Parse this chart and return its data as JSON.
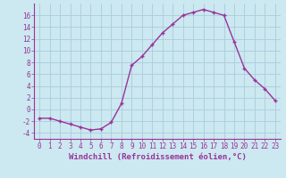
{
  "x": [
    0,
    1,
    2,
    3,
    4,
    5,
    6,
    7,
    8,
    9,
    10,
    11,
    12,
    13,
    14,
    15,
    16,
    17,
    18,
    19,
    20,
    21,
    22,
    23
  ],
  "y": [
    -1.5,
    -1.5,
    -2.0,
    -2.5,
    -3.0,
    -3.5,
    -3.3,
    -2.2,
    1.0,
    7.5,
    9.0,
    11.0,
    13.0,
    14.5,
    16.0,
    16.5,
    17.0,
    16.5,
    16.0,
    11.5,
    7.0,
    5.0,
    3.5,
    1.5
  ],
  "line_color": "#993399",
  "marker": "+",
  "marker_size": 3.5,
  "marker_edge_width": 1.0,
  "linewidth": 1.0,
  "xlabel": "Windchill (Refroidissement éolien,°C)",
  "xlabel_fontsize": 6.5,
  "bg_color": "#cce8f0",
  "grid_color": "#aaccdd",
  "ylim": [
    -5,
    18
  ],
  "xlim": [
    -0.5,
    23.5
  ],
  "yticks": [
    -4,
    -2,
    0,
    2,
    4,
    6,
    8,
    10,
    12,
    14,
    16
  ],
  "xticks": [
    0,
    1,
    2,
    3,
    4,
    5,
    6,
    7,
    8,
    9,
    10,
    11,
    12,
    13,
    14,
    15,
    16,
    17,
    18,
    19,
    20,
    21,
    22,
    23
  ],
  "tick_fontsize": 5.5,
  "tick_color": "#993399",
  "spine_color": "#993399"
}
